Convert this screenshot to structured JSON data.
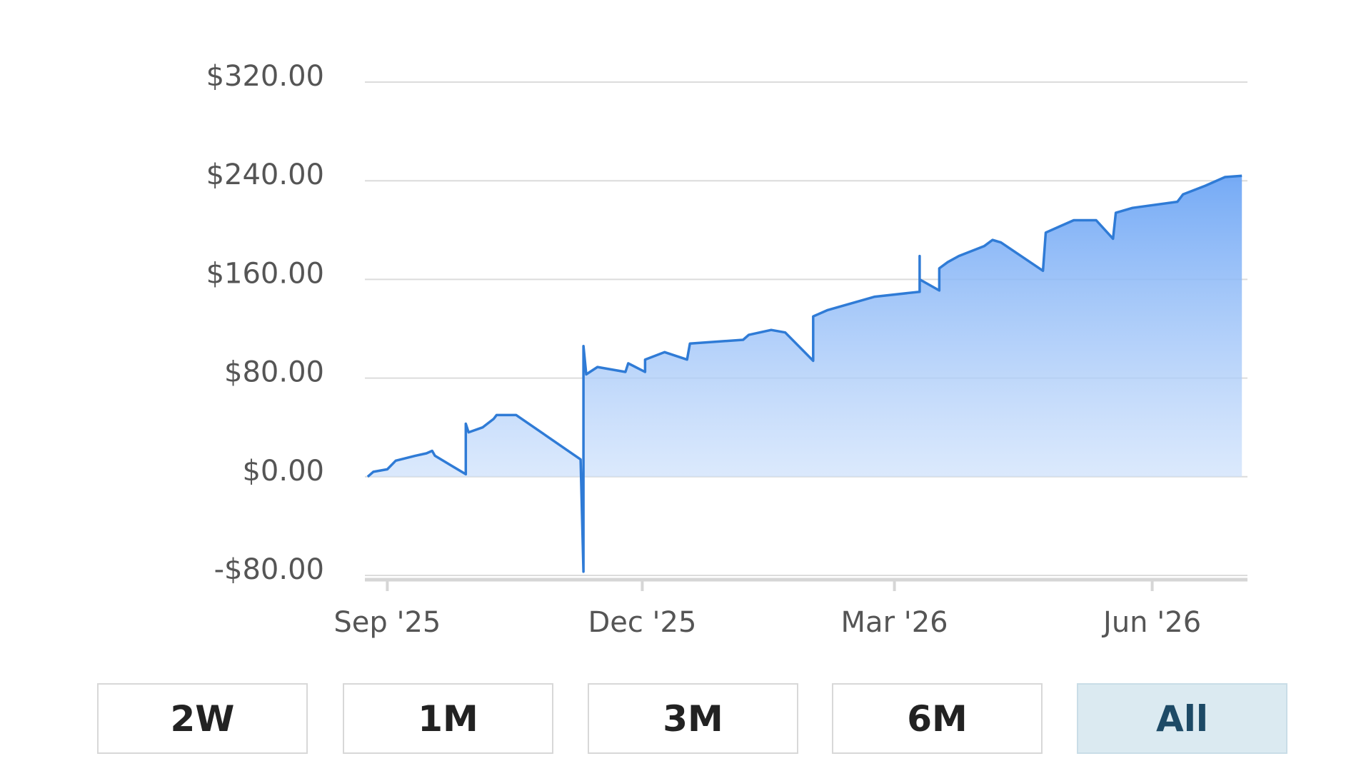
{
  "chart_data": {
    "type": "area",
    "x": [
      -7,
      -5,
      0,
      3,
      10,
      14,
      16,
      17,
      28,
      28,
      29,
      34,
      38,
      39,
      46,
      69,
      70,
      70,
      71,
      75,
      85,
      86,
      92,
      92,
      99,
      107,
      108,
      127,
      129,
      137,
      142,
      152,
      152,
      157,
      174,
      190,
      190,
      190,
      197,
      197,
      200,
      204,
      213,
      216,
      219,
      234,
      235,
      240,
      245,
      253,
      259,
      260,
      266,
      282,
      284,
      292,
      299,
      305
    ],
    "values": [
      0,
      4,
      6,
      13,
      17,
      19,
      21,
      17,
      2,
      43,
      36,
      40,
      47,
      50,
      50,
      14,
      -77,
      106,
      83,
      89,
      85,
      92,
      85,
      95,
      101,
      95,
      108,
      111,
      115,
      119,
      117,
      94,
      130,
      135,
      146,
      150,
      179,
      160,
      151,
      169,
      174,
      179,
      187,
      192,
      190,
      167,
      198,
      203,
      208,
      208,
      193,
      214,
      218,
      223,
      229,
      236,
      243,
      244
    ],
    "color": "#2f7bd6",
    "xlim": [
      -8,
      307
    ],
    "xticks": [
      {
        "value": 0,
        "label": "Sep '25"
      },
      {
        "value": 91,
        "label": "Dec '25"
      },
      {
        "value": 181,
        "label": "Mar '26"
      },
      {
        "value": 273,
        "label": "Jun '26"
      }
    ],
    "ylim": [
      -80,
      320
    ],
    "yticks": [
      {
        "value": -80,
        "label": "-$80.00"
      },
      {
        "value": 0,
        "label": "$0.00"
      },
      {
        "value": 80,
        "label": "$80.00"
      },
      {
        "value": 160,
        "label": "$160.00"
      },
      {
        "value": 240,
        "label": "$240.00"
      },
      {
        "value": 320,
        "label": "$320.00"
      }
    ],
    "grid": true
  },
  "range_buttons": [
    "2W",
    "1M",
    "3M",
    "6M",
    "All"
  ]
}
